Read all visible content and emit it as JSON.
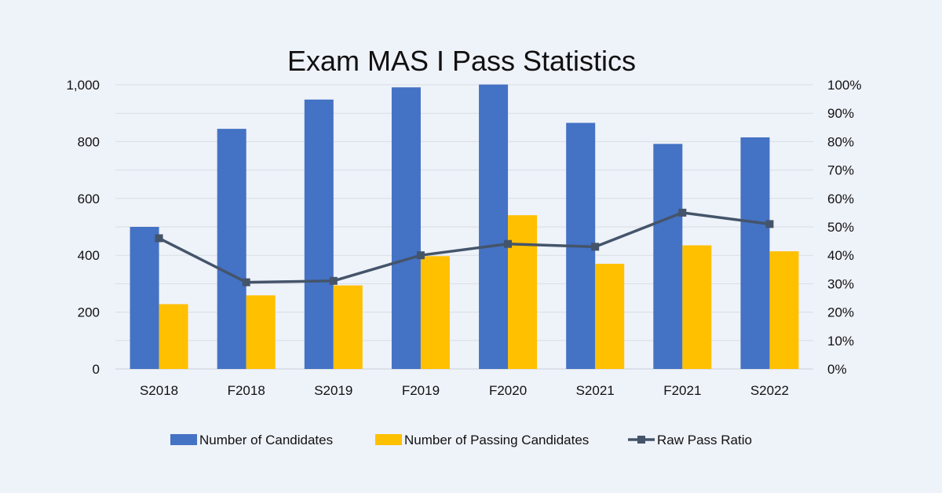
{
  "chart_data": {
    "type": "bar",
    "title": "Exam MAS I Pass Statistics",
    "xlabel": "",
    "ylabel": "",
    "categories": [
      "S2018",
      "F2018",
      "S2019",
      "F2019",
      "F2020",
      "S2021",
      "F2021",
      "S2022"
    ],
    "series": [
      {
        "name": "Number of Candidates",
        "type": "bar",
        "axis": "left",
        "color": "#4472c4",
        "values": [
          500,
          845,
          948,
          991,
          1001,
          866,
          792,
          815
        ]
      },
      {
        "name": "Number of Passing Candidates",
        "type": "bar",
        "axis": "left",
        "color": "#ffc000",
        "values": [
          228,
          259,
          294,
          397,
          541,
          370,
          435,
          414
        ]
      },
      {
        "name": "Raw Pass Ratio",
        "type": "line",
        "axis": "right",
        "color": "#44546a",
        "values": [
          0.46,
          0.305,
          0.31,
          0.4,
          0.44,
          0.43,
          0.55,
          0.51
        ]
      }
    ],
    "y_left": {
      "range": [
        0,
        1000
      ],
      "ticks": [
        0,
        200,
        400,
        600,
        800,
        1000
      ],
      "tick_labels": [
        "0",
        "200",
        "400",
        "600",
        "800",
        "1,000"
      ]
    },
    "y_right": {
      "range": [
        0,
        1
      ],
      "ticks": [
        0,
        0.1,
        0.2,
        0.3,
        0.4,
        0.5,
        0.6,
        0.7,
        0.8,
        0.9,
        1.0
      ],
      "tick_labels": [
        "0%",
        "10%",
        "20%",
        "30%",
        "40%",
        "50%",
        "60%",
        "70%",
        "80%",
        "90%",
        "100%"
      ]
    },
    "grid": true,
    "legend": "bottom",
    "background": "#eef2f9",
    "gridline_color": "#d9dde4",
    "text_color": "#111111"
  }
}
